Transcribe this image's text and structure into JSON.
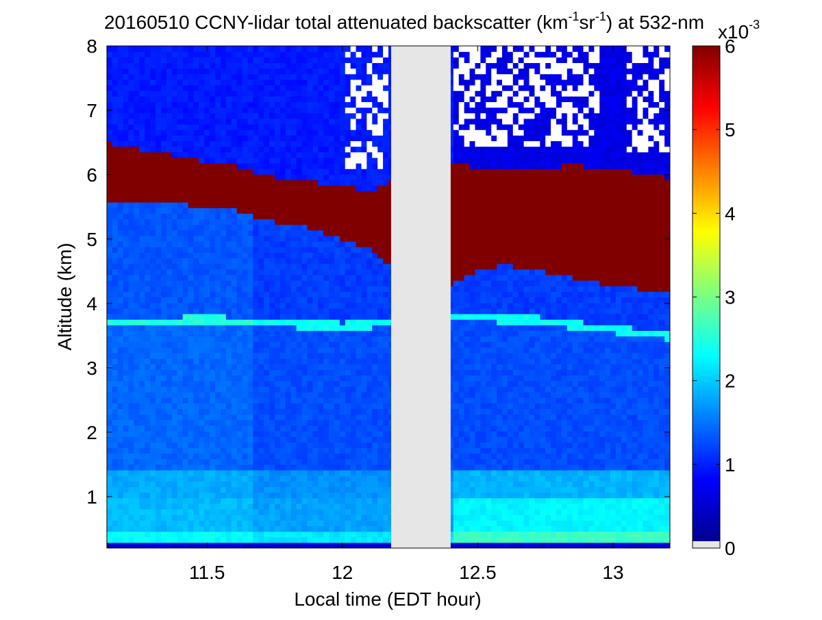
{
  "chart_data": {
    "type": "heatmap",
    "title": {
      "prefix": "20160510 CCNY-lidar total attenuated backscatter (km",
      "sup1": "-1",
      "mid": "sr",
      "sup2": "-1",
      "suffix": ") at 532-nm"
    },
    "xlabel": "Local time (EDT hour)",
    "ylabel": "Altitude (km)",
    "xlim": [
      11.13,
      13.21
    ],
    "ylim": [
      0.2,
      8
    ],
    "xticks": [
      11.5,
      12,
      12.5,
      13
    ],
    "xtick_labels": [
      "11.5",
      "12",
      "12.5",
      "13"
    ],
    "yticks": [
      1,
      2,
      3,
      4,
      5,
      6,
      7,
      8
    ],
    "ytick_labels": [
      "1",
      "2",
      "3",
      "4",
      "5",
      "6",
      "7",
      "8"
    ],
    "colorbar": {
      "colormap": "jet",
      "range": [
        0,
        0.006
      ],
      "ticks": [
        0,
        1,
        2,
        3,
        4,
        5,
        6
      ],
      "tick_labels": [
        "0",
        "1",
        "2",
        "3",
        "4",
        "5",
        "6"
      ],
      "exponent_base": "x10",
      "exponent": "-3",
      "missing_color": "#e6e6e6"
    },
    "missing_data_interval": [
      12.18,
      12.4
    ],
    "layers": {
      "cloud_top_km": [
        [
          11.13,
          6.5
        ],
        [
          11.3,
          6.35
        ],
        [
          11.4,
          6.3
        ],
        [
          11.5,
          6.2
        ],
        [
          11.6,
          6.15
        ],
        [
          11.7,
          6.0
        ],
        [
          11.85,
          5.9
        ],
        [
          12.0,
          5.85
        ],
        [
          12.1,
          5.75
        ],
        [
          12.18,
          5.9
        ],
        [
          12.4,
          6.2
        ],
        [
          12.5,
          6.1
        ],
        [
          12.7,
          6.1
        ],
        [
          12.85,
          6.15
        ],
        [
          13.0,
          6.1
        ],
        [
          13.21,
          5.95
        ]
      ],
      "cloud_base_km": [
        [
          11.13,
          5.6
        ],
        [
          11.3,
          5.6
        ],
        [
          11.5,
          5.5
        ],
        [
          11.6,
          5.45
        ],
        [
          11.7,
          5.3
        ],
        [
          11.85,
          5.2
        ],
        [
          12.0,
          5.0
        ],
        [
          12.1,
          4.85
        ],
        [
          12.18,
          4.6
        ],
        [
          12.4,
          4.3
        ],
        [
          12.5,
          4.5
        ],
        [
          12.6,
          4.6
        ],
        [
          12.75,
          4.5
        ],
        [
          12.9,
          4.35
        ],
        [
          13.05,
          4.25
        ],
        [
          13.21,
          4.15
        ]
      ],
      "aerosol_layer_top_km": [
        [
          11.13,
          3.7
        ],
        [
          11.5,
          3.75
        ],
        [
          12.0,
          3.65
        ],
        [
          12.18,
          3.7
        ],
        [
          12.4,
          3.8
        ],
        [
          12.7,
          3.75
        ],
        [
          13.0,
          3.6
        ],
        [
          13.21,
          3.5
        ]
      ],
      "boundary_layer_top_km": 1.4,
      "instrument_shift_hour": 11.67
    }
  }
}
